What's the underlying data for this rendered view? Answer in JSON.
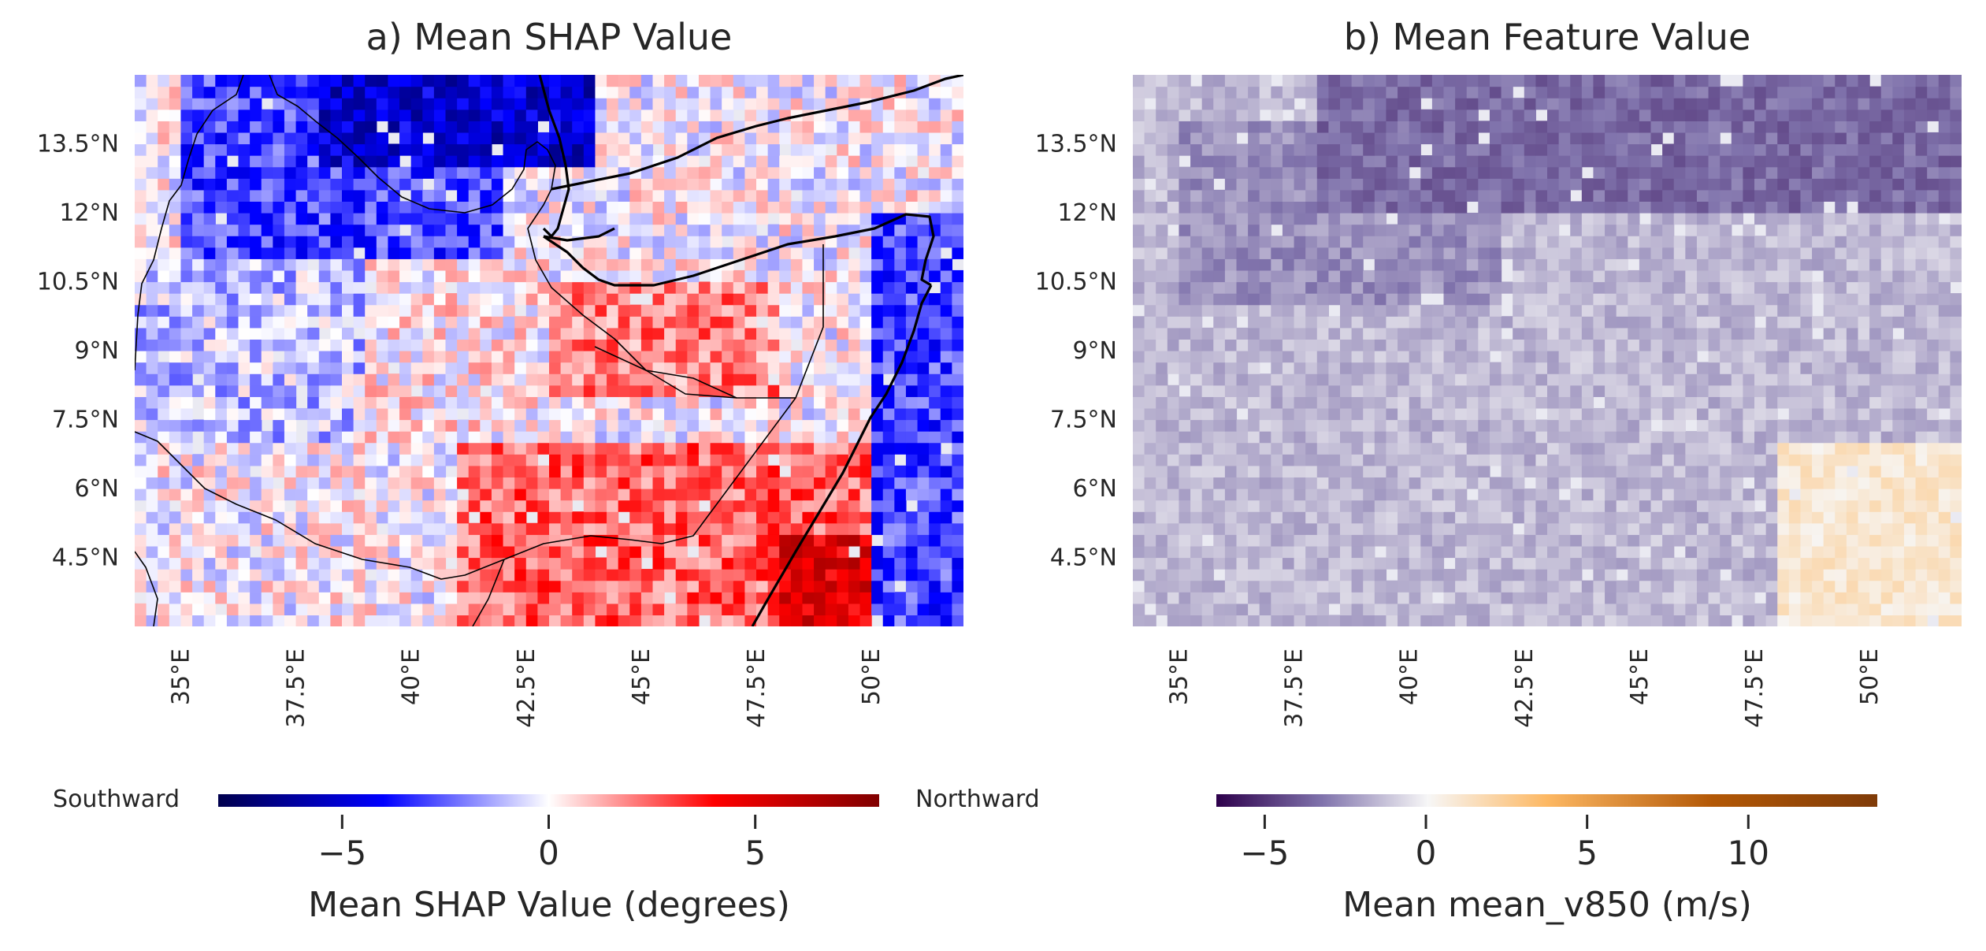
{
  "chart_data": [
    {
      "type": "heatmap",
      "title": "a) Mean SHAP Value",
      "x_ticks": [
        35,
        37.5,
        40,
        42.5,
        45,
        47.5,
        50
      ],
      "x_tick_labels": [
        "35°E",
        "37.5°E",
        "40°E",
        "42.5°E",
        "45°E",
        "47.5°E",
        "50°E"
      ],
      "y_ticks": [
        4.5,
        6,
        7.5,
        9,
        10.5,
        12,
        13.5
      ],
      "y_tick_labels": [
        "4.5°N",
        "6°N",
        "7.5°N",
        "9°N",
        "10.5°N",
        "12°N",
        "13.5°N"
      ],
      "xlim": [
        34,
        52
      ],
      "ylim": [
        3,
        15
      ],
      "grid_resolution_deg": 0.25,
      "colormap": "seismic",
      "colorbar": {
        "range": [
          -8,
          8
        ],
        "ticks": [
          -5,
          0,
          5
        ],
        "tick_labels": [
          "−5",
          "0",
          "5"
        ],
        "label": "Mean SHAP Value (degrees)",
        "left_annotation": "Southward",
        "right_annotation": "Northward"
      },
      "regions": [
        {
          "lat_range": [
            11,
            15
          ],
          "lon_range": [
            35,
            42
          ],
          "approx_value": -3
        },
        {
          "lat_range": [
            13,
            15
          ],
          "lon_range": [
            38,
            44
          ],
          "approx_value": -5
        },
        {
          "lat_range": [
            7,
            11
          ],
          "lon_range": [
            34,
            39
          ],
          "approx_value": -1
        },
        {
          "lat_range": [
            7,
            11
          ],
          "lon_range": [
            39,
            43
          ],
          "approx_value": 0.3
        },
        {
          "lat_range": [
            8,
            10.5
          ],
          "lon_range": [
            43,
            48
          ],
          "approx_value": 2
        },
        {
          "lat_range": [
            3,
            7
          ],
          "lon_range": [
            41,
            50
          ],
          "approx_value": 2.5
        },
        {
          "lat_range": [
            3,
            5
          ],
          "lon_range": [
            48,
            51
          ],
          "approx_value": 5
        },
        {
          "lat_range": [
            3,
            12
          ],
          "lon_range": [
            50,
            52
          ],
          "approx_value": -3
        }
      ]
    },
    {
      "type": "heatmap",
      "title": "b) Mean Feature Value",
      "x_ticks": [
        35,
        37.5,
        40,
        42.5,
        45,
        47.5,
        50
      ],
      "x_tick_labels": [
        "35°E",
        "37.5°E",
        "40°E",
        "42.5°E",
        "45°E",
        "47.5°E",
        "50°E"
      ],
      "y_ticks": [
        4.5,
        6,
        7.5,
        9,
        10.5,
        12,
        13.5
      ],
      "y_tick_labels": [
        "4.5°N",
        "6°N",
        "7.5°N",
        "9°N",
        "10.5°N",
        "12°N",
        "13.5°N"
      ],
      "xlim": [
        34,
        52
      ],
      "ylim": [
        3,
        15
      ],
      "grid_resolution_deg": 0.25,
      "colormap": "PuOr_r",
      "colorbar": {
        "range": [
          -6.5,
          14
        ],
        "ticks": [
          -5,
          0,
          5,
          10
        ],
        "tick_labels": [
          "−5",
          "0",
          "5",
          "10"
        ],
        "label": "Mean mean_v850 (m/s)"
      },
      "regions": [
        {
          "lat_range": [
            3,
            15
          ],
          "lon_range": [
            34,
            52
          ],
          "approx_value": -1.5
        },
        {
          "lat_range": [
            10,
            14
          ],
          "lon_range": [
            35,
            42
          ],
          "approx_value": -2.5
        },
        {
          "lat_range": [
            12,
            15
          ],
          "lon_range": [
            38,
            52
          ],
          "approx_value": -3.5
        },
        {
          "lat_range": [
            3,
            7
          ],
          "lon_range": [
            48,
            52
          ],
          "approx_value": 1
        }
      ]
    }
  ]
}
